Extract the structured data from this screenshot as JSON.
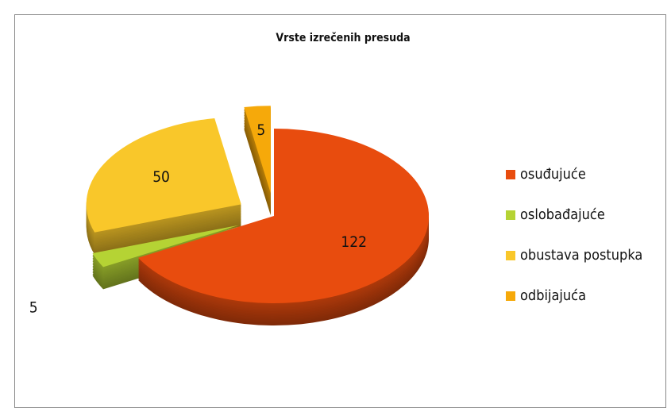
{
  "chart_data": {
    "type": "pie",
    "title": "Vrste izrečenih presuda",
    "categories": [
      "osuđujuće",
      "oslobađajuće",
      "obustava postupka",
      "odbijajuća"
    ],
    "values": [
      122,
      5,
      50,
      5
    ],
    "colors": [
      "#e84c0e",
      "#b5d334",
      "#f9c72a",
      "#f6a90a"
    ],
    "legend": "right"
  }
}
